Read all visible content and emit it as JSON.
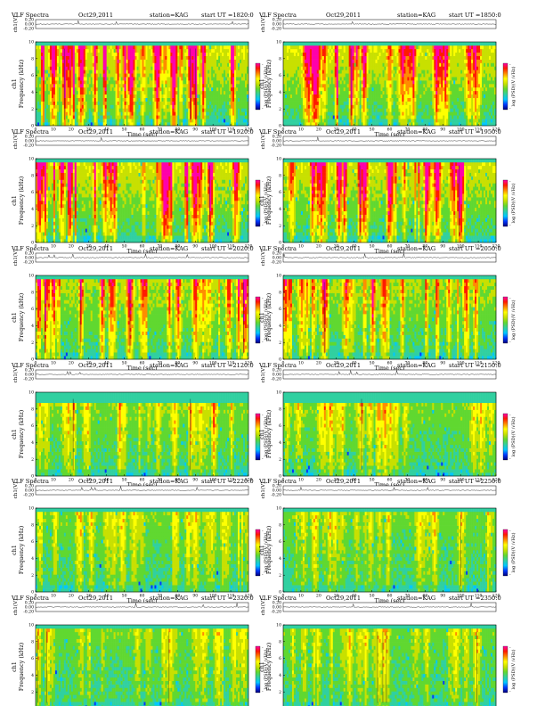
{
  "chart_data": {
    "type": "heatmap",
    "header": {
      "title": "VLF Spectra",
      "date": "Oct29,2011",
      "station": "station=KAG",
      "start_prefix": "start  UT ="
    },
    "panels": [
      {
        "start_ut": "1820:0",
        "seed": 11,
        "intensity": 0.86,
        "band_top": 10
      },
      {
        "start_ut": "1850:0",
        "seed": 23,
        "intensity": 0.86,
        "band_top": 10
      },
      {
        "start_ut": "1920:0",
        "seed": 37,
        "intensity": 0.84,
        "band_top": 10
      },
      {
        "start_ut": "1950:0",
        "seed": 41,
        "intensity": 0.82,
        "band_top": 10
      },
      {
        "start_ut": "2020:0",
        "seed": 53,
        "intensity": 0.64,
        "band_top": 10
      },
      {
        "start_ut": "2050:0",
        "seed": 67,
        "intensity": 0.6,
        "band_top": 10
      },
      {
        "start_ut": "2120:0",
        "seed": 79,
        "intensity": 0.48,
        "band_top": 9
      },
      {
        "start_ut": "2150:0",
        "seed": 83,
        "intensity": 0.44,
        "band_top": 9
      },
      {
        "start_ut": "2220:0",
        "seed": 97,
        "intensity": 0.38,
        "band_top": 10
      },
      {
        "start_ut": "2250:0",
        "seed": 101,
        "intensity": 0.36,
        "band_top": 10
      },
      {
        "start_ut": "2320:0",
        "seed": 113,
        "intensity": 0.34,
        "band_top": 10
      },
      {
        "start_ut": "2350:0",
        "seed": 127,
        "intensity": 0.34,
        "band_top": 10
      }
    ],
    "waveform_ylabel": "ch1(V)",
    "waveform_ticks": [
      "0.20",
      "0.00",
      "-0.20"
    ],
    "waveform_ylim": [
      -0.2,
      0.2
    ],
    "spectrogram_ylabel_lines": [
      "ch1",
      "Frequency  (kHz)"
    ],
    "ylim_khz": [
      0,
      10
    ],
    "yticks_khz": [
      0,
      2,
      4,
      6,
      8,
      10
    ],
    "xlabel": "Time  (sec)",
    "xlim_sec": [
      0,
      120
    ],
    "xticks_sec": [
      0,
      10,
      20,
      30,
      40,
      50,
      60,
      70,
      80,
      90,
      100,
      110,
      120
    ],
    "colorbar_label": "log  (PSD)(V /√Hz)",
    "colorbar_ticks": [
      "-",
      "-"
    ],
    "colormap": [
      "#00007a",
      "#0038ff",
      "#00c8ff",
      "#30d0a0",
      "#60d830",
      "#c8e000",
      "#ffff00",
      "#ff8c00",
      "#ff1a00",
      "#ff00aa"
    ]
  }
}
